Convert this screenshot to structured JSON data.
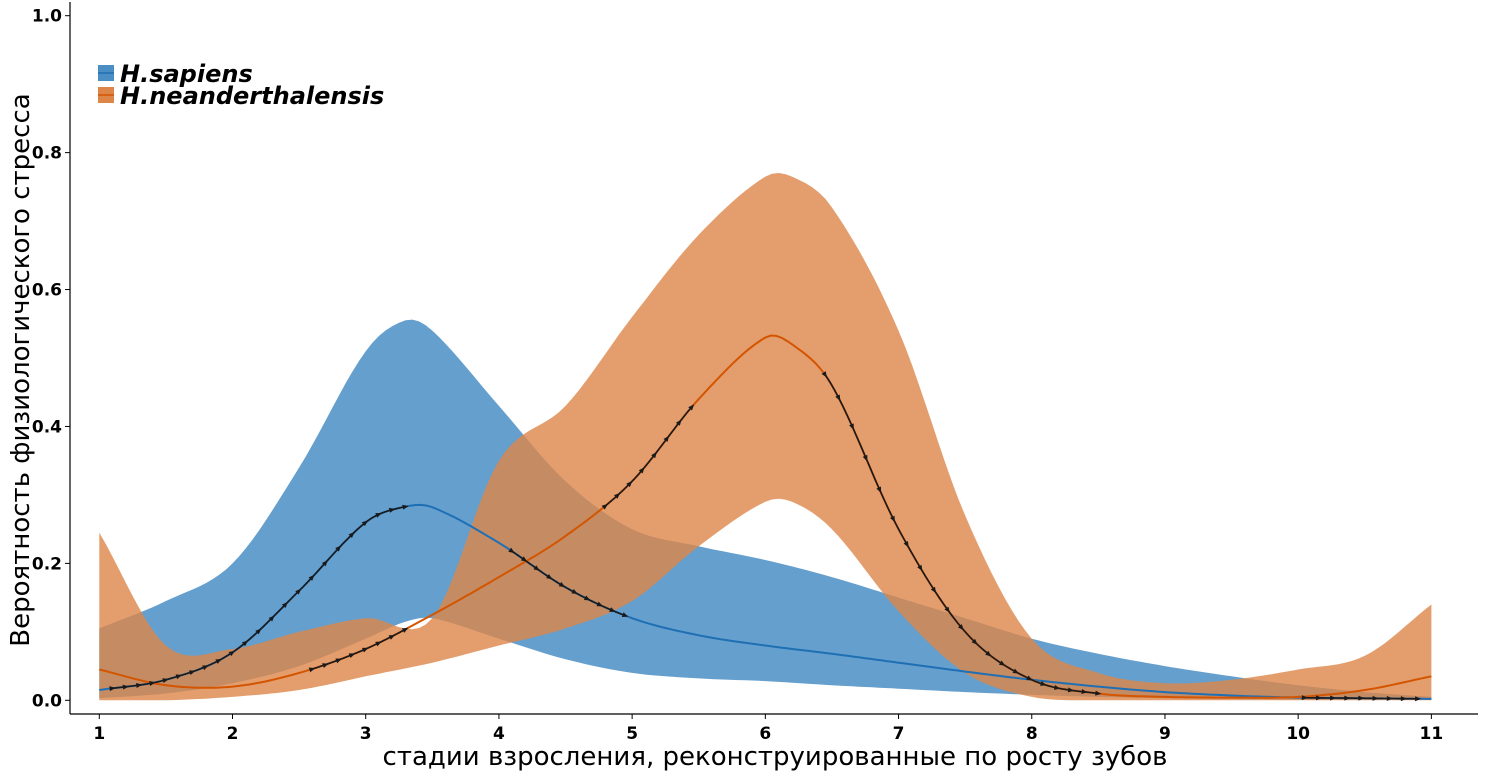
{
  "chart_data": {
    "type": "line",
    "title": "",
    "xlabel": "стадии взросления, реконструированные по росту зубов",
    "ylabel": "Вероятность физиологического стресса",
    "xlim": [
      0.78,
      11.35
    ],
    "ylim": [
      -0.02,
      1.02
    ],
    "x_ticks": [
      1,
      2,
      3,
      4,
      5,
      6,
      7,
      8,
      9,
      10,
      11
    ],
    "x_tick_labels": [
      "1",
      "2",
      "3",
      "4",
      "5",
      "6",
      "7",
      "8",
      "9",
      "10",
      "11"
    ],
    "y_ticks": [
      0.0,
      0.2,
      0.4,
      0.6,
      0.8,
      1.0
    ],
    "y_tick_labels": [
      "0.0",
      "0.2",
      "0.4",
      "0.6",
      "0.8",
      "1.0"
    ],
    "grid": false,
    "legend_position": "top-left",
    "series": [
      {
        "name": "H.sapiens",
        "color": "#1f6fb4",
        "fill_color": "#4a8ec4",
        "x": [
          1,
          1.5,
          2,
          2.5,
          3,
          3.3,
          3.5,
          4,
          4.5,
          5,
          5.5,
          6,
          6.5,
          7,
          7.5,
          8,
          8.5,
          9,
          9.5,
          10,
          10.5,
          11
        ],
        "mean": [
          0.015,
          0.03,
          0.07,
          0.16,
          0.26,
          0.283,
          0.282,
          0.23,
          0.165,
          0.12,
          0.095,
          0.08,
          0.068,
          0.055,
          0.042,
          0.03,
          0.02,
          0.012,
          0.007,
          0.004,
          0.003,
          0.002
        ],
        "lower": [
          0.003,
          0.01,
          0.025,
          0.05,
          0.09,
          0.115,
          0.12,
          0.09,
          0.06,
          0.04,
          0.032,
          0.028,
          0.022,
          0.017,
          0.012,
          0.008,
          0.005,
          0.003,
          0.002,
          0.001,
          0.001,
          0.001
        ],
        "upper": [
          0.105,
          0.145,
          0.2,
          0.34,
          0.51,
          0.555,
          0.54,
          0.43,
          0.32,
          0.25,
          0.225,
          0.205,
          0.18,
          0.15,
          0.12,
          0.09,
          0.068,
          0.05,
          0.035,
          0.022,
          0.012,
          0.005
        ]
      },
      {
        "name": "H.neanderthalensis",
        "color": "#d45500",
        "fill_color": "#dd8648",
        "x": [
          1,
          1.5,
          2,
          2.5,
          3,
          3.5,
          4,
          4.5,
          5,
          5.5,
          6,
          6.2,
          6.5,
          7,
          7.5,
          8,
          8.5,
          9,
          9.5,
          10,
          10.5,
          11
        ],
        "mean": [
          0.045,
          0.022,
          0.02,
          0.04,
          0.075,
          0.125,
          0.18,
          0.24,
          0.32,
          0.44,
          0.53,
          0.52,
          0.46,
          0.25,
          0.1,
          0.03,
          0.01,
          0.005,
          0.004,
          0.005,
          0.015,
          0.035
        ],
        "lower": [
          0.0,
          0.0,
          0.005,
          0.015,
          0.035,
          0.055,
          0.08,
          0.105,
          0.145,
          0.225,
          0.29,
          0.29,
          0.25,
          0.13,
          0.04,
          0.005,
          0.0,
          0.0,
          0.0,
          0.0,
          0.0,
          0.0
        ],
        "upper": [
          0.245,
          0.08,
          0.075,
          0.1,
          0.12,
          0.12,
          0.35,
          0.43,
          0.56,
          0.68,
          0.765,
          0.765,
          0.72,
          0.54,
          0.27,
          0.09,
          0.04,
          0.025,
          0.03,
          0.045,
          0.065,
          0.14
        ]
      }
    ],
    "annotations": [
      {
        "series": "H.sapiens",
        "x_range": [
          1.1,
          3.3
        ],
        "x_range_2": [
          4.1,
          4.95
        ],
        "x_range_3": [
          10.05,
          10.9
        ],
        "color": "#1a1a1a"
      },
      {
        "series": "H.neanderthalensis",
        "x_range": [
          2.6,
          3.3
        ],
        "x_range_2": [
          4.8,
          5.45
        ],
        "x_range_3": [
          6.45,
          8.5
        ],
        "color": "#1a1a1a"
      }
    ]
  }
}
